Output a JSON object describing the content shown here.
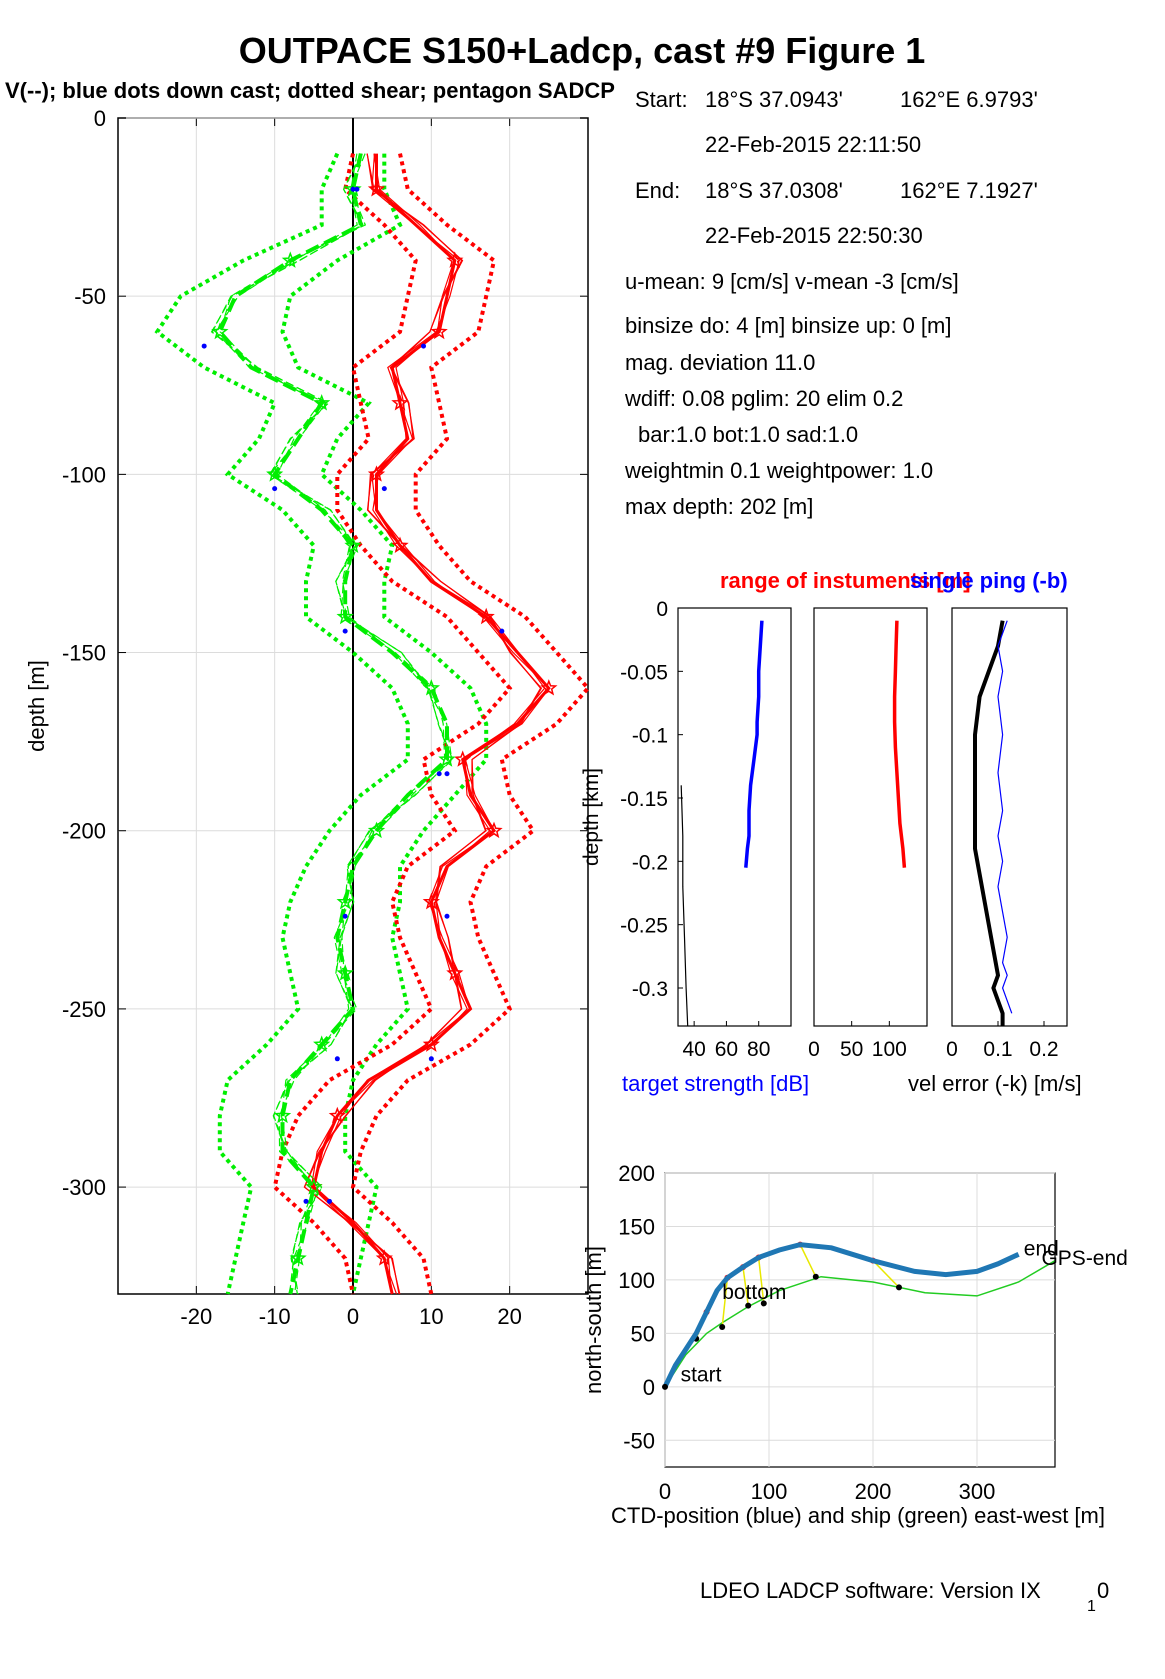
{
  "figure": {
    "title": "OUTPACE S150+Ladcp, cast #9  Figure 1",
    "subtitle": "V(--); blue dots down cast; dotted shear; pentagon SADCP",
    "footer": "LDEO LADCP software: Version IX",
    "footer_sub": "1",
    "footer_tail": "0"
  },
  "info": {
    "start_label": "Start:",
    "start_lat": "18°S 37.0943'",
    "start_lon": "162°E  6.9793'",
    "start_time": "22-Feb-2015 22:11:50",
    "end_label": "End:",
    "end_lat": "18°S 37.0308'",
    "end_lon": "162°E  7.1927'",
    "end_time": "22-Feb-2015 22:50:30",
    "means": "u-mean:   9 [cm/s]    v-mean  -3 [cm/s]",
    "binsize": "binsize do: 4 [m]  binsize up:  0 [m]",
    "magdev": "mag. deviation 11.0",
    "wdiff": "wdiff: 0.08  pglim: 20  elim 0.2",
    "barbot": "bar:1.0 bot:1.0 sad:1.0",
    "weight": "weightmin 0.1  weightpower: 1.0",
    "maxdepth": "max depth: 202 [m]"
  },
  "colors": {
    "u": "#ff0000",
    "v": "#00ee00",
    "ts": "#0000ff",
    "track": "#1f77b4",
    "ship": "#22cc22",
    "link": "#e8e800"
  },
  "chart_data": [
    {
      "type": "line",
      "name": "velocity-profile",
      "ylabel": "depth [m]",
      "xlim": [
        -30,
        30
      ],
      "ylim": [
        -330,
        0
      ],
      "xticks": [
        -20,
        -10,
        0,
        10,
        20
      ],
      "yticks": [
        0,
        -50,
        -100,
        -150,
        -200,
        -250,
        -300
      ],
      "grid": true,
      "depth": [
        -10,
        -20,
        -30,
        -40,
        -50,
        -60,
        -70,
        -80,
        -90,
        -100,
        -110,
        -120,
        -130,
        -140,
        -150,
        -160,
        -170,
        -180,
        -190,
        -200,
        -210,
        -220,
        -230,
        -240,
        -250,
        -260,
        -270,
        -280,
        -290,
        -300,
        -310,
        -320,
        -330
      ],
      "u": [
        3,
        3,
        8,
        13,
        12,
        11,
        5,
        6,
        7,
        3,
        3,
        6,
        10,
        17,
        21,
        25,
        21,
        14,
        15,
        18,
        12,
        10,
        11,
        13,
        15,
        10,
        2,
        -2,
        -4,
        -5,
        0,
        4,
        5
      ],
      "v": [
        1,
        0,
        1,
        -8,
        -15,
        -17,
        -13,
        -4,
        -7,
        -10,
        -4,
        0,
        -1,
        -1,
        5,
        10,
        12,
        12,
        7,
        3,
        0,
        -1,
        -2,
        -1,
        0,
        -4,
        -8,
        -9,
        -9,
        -5,
        -6,
        -7,
        -8
      ],
      "u_err_halfwidth": [
        3,
        4,
        4,
        5,
        5,
        5,
        5,
        5,
        5,
        5,
        5,
        5,
        5,
        5,
        5,
        5,
        5,
        5,
        5,
        5,
        5,
        5,
        5,
        5,
        5,
        5,
        5,
        5,
        5,
        5,
        5,
        5,
        5
      ],
      "v_err_halfwidth": [
        3,
        4,
        5,
        6,
        7,
        8,
        6,
        6,
        5,
        6,
        5,
        5,
        5,
        5,
        5,
        5,
        5,
        5,
        6,
        6,
        6,
        7,
        7,
        7,
        7,
        7,
        8,
        8,
        8,
        8,
        8,
        8,
        8
      ],
      "downcast_points": [
        {
          "x": 0,
          "depth": -20
        },
        {
          "x": -19,
          "depth": -64
        },
        {
          "x": -10,
          "depth": -104
        },
        {
          "x": -1,
          "depth": -144
        },
        {
          "x": 11,
          "depth": -184
        },
        {
          "x": -1,
          "depth": -224
        },
        {
          "x": -2,
          "depth": -264
        },
        {
          "x": -3,
          "depth": -304
        },
        {
          "x": 0.5,
          "depth": -20
        },
        {
          "x": 9,
          "depth": -64
        },
        {
          "x": 4,
          "depth": -104
        },
        {
          "x": 19,
          "depth": -144
        },
        {
          "x": 12,
          "depth": -184
        },
        {
          "x": 12,
          "depth": -224
        },
        {
          "x": 10,
          "depth": -264
        },
        {
          "x": -6,
          "depth": -304
        }
      ]
    },
    {
      "type": "line",
      "name": "target-strength",
      "title": "range of instuments [m]",
      "xlabel": "target strength [dB]",
      "ylabel": "depth [km]",
      "xlim": [
        30,
        100
      ],
      "ylim": [
        -0.33,
        0
      ],
      "xticks": [
        40,
        60,
        80
      ],
      "yticks": [
        0,
        -0.05,
        -0.1,
        -0.15,
        -0.2,
        -0.25,
        -0.3
      ],
      "series": [
        {
          "color": "#0000ff",
          "x": [
            82,
            81,
            80,
            80,
            79,
            79,
            77,
            75,
            74,
            74,
            73,
            72
          ],
          "depth": [
            -0.01,
            -0.03,
            -0.05,
            -0.07,
            -0.09,
            -0.1,
            -0.12,
            -0.14,
            -0.16,
            -0.18,
            -0.19,
            -0.205
          ]
        },
        {
          "color": "#000000",
          "x": [
            32,
            33,
            33,
            34,
            35,
            36
          ],
          "depth": [
            -0.14,
            -0.18,
            -0.22,
            -0.26,
            -0.3,
            -0.33
          ]
        }
      ]
    },
    {
      "type": "line",
      "name": "range",
      "xlim": [
        0,
        150
      ],
      "ylim": [
        -0.33,
        0
      ],
      "xticks": [
        0,
        50,
        100
      ],
      "series": [
        {
          "color": "#ff0000",
          "x": [
            110,
            109,
            108,
            107,
            107,
            108,
            110,
            112,
            114,
            116,
            118,
            120
          ],
          "depth": [
            -0.01,
            -0.03,
            -0.05,
            -0.07,
            -0.09,
            -0.11,
            -0.13,
            -0.15,
            -0.17,
            -0.18,
            -0.19,
            -0.205
          ]
        }
      ]
    },
    {
      "type": "line",
      "name": "vel-error",
      "title": "single ping (-b)",
      "xlabel": "vel error (-k) [m/s]",
      "xlim": [
        0,
        0.25
      ],
      "ylim": [
        -0.33,
        0
      ],
      "xticks": [
        0,
        0.1,
        0.2
      ],
      "series": [
        {
          "color": "#000000",
          "x": [
            0.11,
            0.1,
            0.08,
            0.06,
            0.05,
            0.05,
            0.05,
            0.05,
            0.06,
            0.07,
            0.08,
            0.09,
            0.1,
            0.09,
            0.1,
            0.11,
            0.11
          ],
          "depth": [
            -0.01,
            -0.03,
            -0.05,
            -0.07,
            -0.1,
            -0.13,
            -0.16,
            -0.19,
            -0.21,
            -0.23,
            -0.25,
            -0.27,
            -0.29,
            -0.3,
            -0.31,
            -0.32,
            -0.33
          ]
        },
        {
          "color": "#0000ff",
          "x": [
            0.12,
            0.1,
            0.11,
            0.1,
            0.11,
            0.1,
            0.11,
            0.1,
            0.11,
            0.1,
            0.11,
            0.12,
            0.11,
            0.12,
            0.11,
            0.12,
            0.13
          ],
          "depth": [
            -0.01,
            -0.03,
            -0.05,
            -0.07,
            -0.1,
            -0.13,
            -0.16,
            -0.18,
            -0.2,
            -0.22,
            -0.24,
            -0.26,
            -0.28,
            -0.29,
            -0.3,
            -0.31,
            -0.32
          ]
        }
      ]
    },
    {
      "type": "line",
      "name": "track",
      "xlabel": "CTD-position (blue) and ship (green) east-west [m]",
      "ylabel": "north-south [m]",
      "xlim": [
        0,
        375
      ],
      "ylim": [
        -75,
        200
      ],
      "xticks": [
        0,
        100,
        200,
        300
      ],
      "yticks": [
        200,
        150,
        100,
        50,
        0,
        -50
      ],
      "grid": true,
      "ctd": {
        "x": [
          0,
          5,
          10,
          20,
          30,
          40,
          50,
          60,
          75,
          90,
          110,
          130,
          160,
          200,
          240,
          270,
          300,
          320,
          340
        ],
        "y": [
          0,
          10,
          20,
          35,
          50,
          70,
          90,
          102,
          112,
          121,
          128,
          133,
          130,
          118,
          108,
          105,
          108,
          115,
          124
        ]
      },
      "ship": {
        "x": [
          0,
          10,
          20,
          30,
          40,
          55,
          80,
          110,
          150,
          200,
          250,
          300,
          340,
          375
        ],
        "y": [
          0,
          15,
          30,
          40,
          50,
          60,
          75,
          90,
          103,
          98,
          88,
          85,
          98,
          118
        ]
      },
      "links": [
        [
          40,
          70,
          30,
          45
        ],
        [
          60,
          102,
          55,
          56
        ],
        [
          75,
          112,
          80,
          76
        ],
        [
          90,
          121,
          95,
          78
        ],
        [
          130,
          133,
          145,
          103
        ],
        [
          200,
          118,
          225,
          93
        ]
      ],
      "labels": {
        "start": "start",
        "bottom": "bottom",
        "end": "end",
        "gps_end": "GPS-end"
      }
    }
  ]
}
